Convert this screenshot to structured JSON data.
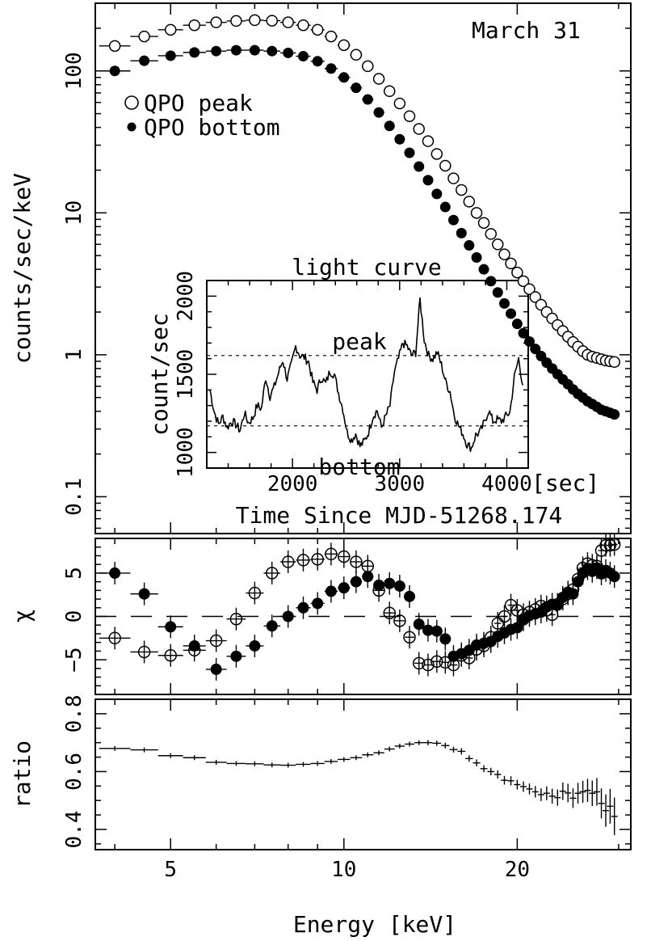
{
  "chart_data": [
    {
      "type": "scatter",
      "panel": "spectrum",
      "title": "March 31",
      "xlabel": "Energy [keV]",
      "ylabel": "counts/sec/keV",
      "xscale": "log",
      "yscale": "log",
      "xlim": [
        3.7,
        31.5
      ],
      "ylim": [
        0.055,
        300
      ],
      "xticks": [
        5,
        10,
        20
      ],
      "yticks": [
        0.1,
        1,
        10,
        100
      ],
      "ytick_labels": [
        "0.1",
        "1",
        "10",
        "100"
      ],
      "legend": [
        "QPO peak",
        "QPO bottom"
      ],
      "series": [
        {
          "name": "QPO peak",
          "marker": "open-circle",
          "x": [
            4.0,
            4.5,
            5.0,
            5.5,
            6.0,
            6.5,
            7.0,
            7.5,
            8.0,
            8.5,
            9.0,
            9.5,
            10.0,
            10.5,
            11.0,
            11.5,
            12.0,
            12.5,
            13.0,
            13.5,
            14.0,
            14.5,
            15.0,
            15.5,
            16.0,
            16.5,
            17.0,
            17.5,
            18.0,
            18.5,
            19.0,
            19.5,
            20.0,
            20.5,
            21.0,
            21.5,
            22.0,
            22.5,
            23.0,
            23.5,
            24.0,
            24.5,
            25.0,
            25.5,
            26.0,
            26.5,
            27.0,
            27.5,
            28.0,
            28.5,
            29.0,
            29.5
          ],
          "y": [
            150,
            175,
            195,
            210,
            220,
            225,
            228,
            226,
            220,
            210,
            195,
            175,
            152,
            130,
            108,
            88,
            72,
            59,
            48,
            39,
            32,
            26,
            21.5,
            17.5,
            14.5,
            12,
            10,
            8.5,
            7.1,
            6,
            5.1,
            4.4,
            3.8,
            3.3,
            2.9,
            2.55,
            2.25,
            2.0,
            1.8,
            1.62,
            1.47,
            1.34,
            1.23,
            1.14,
            1.06,
            1.0,
            0.97,
            0.95,
            0.93,
            0.91,
            0.9,
            0.89
          ]
        },
        {
          "name": "QPO bottom",
          "marker": "filled-circle",
          "x": [
            4.0,
            4.5,
            5.0,
            5.5,
            6.0,
            6.5,
            7.0,
            7.5,
            8.0,
            8.5,
            9.0,
            9.5,
            10.0,
            10.5,
            11.0,
            11.5,
            12.0,
            12.5,
            13.0,
            13.5,
            14.0,
            14.5,
            15.0,
            15.5,
            16.0,
            16.5,
            17.0,
            17.5,
            18.0,
            18.5,
            19.0,
            19.5,
            20.0,
            20.5,
            21.0,
            21.5,
            22.0,
            22.5,
            23.0,
            23.5,
            24.0,
            24.5,
            25.0,
            25.5,
            26.0,
            26.5,
            27.0,
            27.5,
            28.0,
            28.5,
            29.0,
            29.5
          ],
          "y": [
            100,
            118,
            128,
            135,
            138,
            140,
            140,
            138,
            134,
            127,
            117,
            104,
            90,
            76,
            63,
            51,
            41,
            33,
            26.5,
            21.2,
            17,
            13.6,
            11,
            8.9,
            7.2,
            5.9,
            4.85,
            4.0,
            3.3,
            2.75,
            2.3,
            1.95,
            1.65,
            1.42,
            1.24,
            1.1,
            0.98,
            0.88,
            0.8,
            0.73,
            0.67,
            0.62,
            0.57,
            0.53,
            0.5,
            0.47,
            0.45,
            0.43,
            0.41,
            0.4,
            0.39,
            0.38
          ]
        }
      ],
      "inset": {
        "type": "line",
        "title": "light curve",
        "xlabel": "Time Since MJD-51268.174",
        "x_unit": "[sec]",
        "ylabel": "count/sec",
        "xlim": [
          1200,
          4200
        ],
        "ylim": [
          900,
          2100
        ],
        "xticks": [
          2000,
          3000,
          4000
        ],
        "yticks": [
          1000,
          1500,
          2000
        ],
        "levels": [
          {
            "name": "peak",
            "y": 1620
          },
          {
            "name": "bottom",
            "y": 1170
          }
        ],
        "x": [
          1230,
          1270,
          1310,
          1350,
          1390,
          1430,
          1470,
          1510,
          1550,
          1590,
          1630,
          1670,
          1710,
          1750,
          1790,
          1830,
          1870,
          1910,
          1950,
          1990,
          2030,
          2070,
          2110,
          2150,
          2190,
          2230,
          2270,
          2310,
          2350,
          2390,
          2430,
          2470,
          2510,
          2550,
          2590,
          2630,
          2670,
          2710,
          2750,
          2790,
          2830,
          2870,
          2910,
          2950,
          2990,
          3030,
          3070,
          3110,
          3150,
          3190,
          3230,
          3270,
          3310,
          3350,
          3390,
          3430,
          3470,
          3510,
          3550,
          3590,
          3630,
          3670,
          3710,
          3750,
          3790,
          3830,
          3870,
          3910,
          3950,
          3990,
          4030,
          4070,
          4110,
          4150
        ],
        "y": [
          1400,
          1260,
          1180,
          1230,
          1160,
          1200,
          1180,
          1140,
          1250,
          1190,
          1220,
          1300,
          1280,
          1480,
          1360,
          1420,
          1510,
          1590,
          1470,
          1560,
          1680,
          1620,
          1610,
          1580,
          1450,
          1400,
          1480,
          1440,
          1520,
          1500,
          1380,
          1280,
          1130,
          1080,
          1120,
          1040,
          1070,
          1130,
          1230,
          1270,
          1160,
          1230,
          1300,
          1510,
          1600,
          1700,
          1680,
          1620,
          1640,
          1980,
          1720,
          1620,
          1600,
          1640,
          1560,
          1450,
          1390,
          1240,
          1170,
          1120,
          1050,
          1030,
          1110,
          1130,
          1190,
          1270,
          1200,
          1210,
          1200,
          1230,
          1260,
          1480,
          1600,
          1430
        ]
      }
    },
    {
      "type": "scatter",
      "panel": "residuals",
      "ylabel": "χ",
      "xscale": "log",
      "xlim": [
        3.7,
        31.5
      ],
      "ylim": [
        -9,
        9
      ],
      "yticks": [
        -5,
        0,
        5
      ],
      "ytick_labels": [
        "−5",
        "0",
        "5"
      ],
      "series": [
        {
          "name": "QPO peak",
          "marker": "open-circle",
          "x": [
            4.0,
            4.5,
            5.0,
            5.5,
            6.0,
            6.5,
            7.0,
            7.5,
            8.0,
            8.5,
            9.0,
            9.5,
            10.0,
            10.5,
            11.0,
            11.5,
            12.0,
            12.5,
            13.0,
            13.5,
            14.0,
            14.5,
            15.0,
            15.5,
            16.0,
            16.5,
            17.0,
            17.5,
            18.0,
            18.5,
            19.0,
            19.5,
            20.0,
            20.5,
            21.0,
            21.5,
            22.0,
            22.5,
            23.0,
            23.5,
            24.0,
            24.5,
            25.0,
            25.5,
            26.0,
            26.5,
            27.0,
            27.5,
            28.0,
            28.5,
            29.0,
            29.5
          ],
          "y": [
            -2.5,
            -4.1,
            -4.5,
            -3.9,
            -2.8,
            -0.3,
            2.7,
            5.0,
            6.3,
            6.5,
            6.6,
            7.2,
            6.9,
            6.3,
            5.8,
            3.0,
            0.4,
            -0.5,
            -2.4,
            -5.4,
            -5.6,
            -5.2,
            -5.3,
            -5.6,
            -4.5,
            -4.8,
            -3.8,
            -3.4,
            -2.4,
            -0.8,
            0.0,
            1.3,
            0.7,
            0.2,
            0.5,
            0.8,
            1.2,
            0.7,
            0.2,
            1.4,
            2.0,
            2.6,
            3.1,
            4.3,
            5.6,
            6.1,
            5.9,
            5.8,
            7.6,
            8.2,
            8.2,
            8.3
          ]
        },
        {
          "name": "QPO bottom",
          "marker": "filled-circle",
          "x": [
            4.0,
            4.5,
            5.0,
            5.5,
            6.0,
            6.5,
            7.0,
            7.5,
            8.0,
            8.5,
            9.0,
            9.5,
            10.0,
            10.5,
            11.0,
            11.5,
            12.0,
            12.5,
            13.0,
            13.5,
            14.0,
            14.5,
            15.0,
            15.5,
            16.0,
            16.5,
            17.0,
            17.5,
            18.0,
            18.5,
            19.0,
            19.5,
            20.0,
            20.5,
            21.0,
            21.5,
            22.0,
            22.5,
            23.0,
            23.5,
            24.0,
            24.5,
            25.0,
            25.5,
            26.0,
            26.5,
            27.0,
            27.5,
            28.0,
            28.5,
            29.0,
            29.5
          ],
          "y": [
            5.0,
            2.6,
            -1.2,
            -3.4,
            -6.1,
            -4.6,
            -3.4,
            -1.1,
            0.0,
            1.0,
            1.5,
            2.9,
            3.3,
            4.0,
            4.6,
            3.6,
            3.8,
            3.5,
            2.3,
            -0.9,
            -1.6,
            -1.7,
            -2.6,
            -4.6,
            -4.3,
            -3.9,
            -3.3,
            -3.1,
            -2.9,
            -2.3,
            -1.9,
            -1.5,
            -1.3,
            -0.4,
            0.1,
            0.3,
            0.5,
            1.1,
            1.4,
            1.3,
            2.2,
            2.8,
            2.6,
            4.0,
            5.0,
            5.5,
            5.2,
            5.6,
            4.9,
            5.3,
            5.0,
            4.6
          ]
        }
      ]
    },
    {
      "type": "scatter",
      "panel": "ratio",
      "ylabel": "ratio",
      "xlabel": "Energy [keV]",
      "xscale": "log",
      "xlim": [
        3.7,
        31.5
      ],
      "ylim": [
        0.33,
        0.85
      ],
      "yticks": [
        0.4,
        0.6,
        0.8
      ],
      "ytick_labels": [
        "0.4",
        "0.6",
        "0.8"
      ],
      "xticks": [
        5,
        10,
        20
      ],
      "xtick_labels": [
        "5",
        "10",
        "20"
      ],
      "series": [
        {
          "name": "ratio",
          "marker": "cross",
          "x": [
            4.0,
            4.5,
            5.0,
            5.5,
            6.0,
            6.5,
            7.0,
            7.5,
            8.0,
            8.5,
            9.0,
            9.5,
            10.0,
            10.5,
            11.0,
            11.5,
            12.0,
            12.5,
            13.0,
            13.5,
            14.0,
            14.5,
            15.0,
            15.5,
            16.0,
            16.5,
            17.0,
            17.5,
            18.0,
            18.5,
            19.0,
            19.5,
            20.0,
            20.5,
            21.0,
            21.5,
            22.0,
            22.5,
            23.0,
            23.5,
            24.0,
            24.5,
            25.0,
            25.5,
            26.0,
            26.5,
            27.0,
            27.5,
            28.0,
            28.5,
            29.0,
            29.5
          ],
          "y": [
            0.68,
            0.675,
            0.655,
            0.648,
            0.632,
            0.628,
            0.627,
            0.623,
            0.622,
            0.625,
            0.628,
            0.635,
            0.642,
            0.648,
            0.658,
            0.665,
            0.678,
            0.688,
            0.695,
            0.7,
            0.7,
            0.698,
            0.69,
            0.676,
            0.67,
            0.645,
            0.63,
            0.61,
            0.6,
            0.59,
            0.57,
            0.568,
            0.555,
            0.548,
            0.54,
            0.53,
            0.52,
            0.525,
            0.515,
            0.51,
            0.532,
            0.526,
            0.508,
            0.525,
            0.53,
            0.535,
            0.525,
            0.53,
            0.49,
            0.465,
            0.48,
            0.445
          ],
          "yerr": [
            0.005,
            0.005,
            0.005,
            0.005,
            0.005,
            0.005,
            0.005,
            0.005,
            0.005,
            0.005,
            0.006,
            0.006,
            0.006,
            0.006,
            0.007,
            0.007,
            0.007,
            0.008,
            0.008,
            0.008,
            0.009,
            0.009,
            0.01,
            0.01,
            0.011,
            0.011,
            0.012,
            0.012,
            0.013,
            0.014,
            0.015,
            0.016,
            0.017,
            0.018,
            0.019,
            0.02,
            0.022,
            0.024,
            0.026,
            0.028,
            0.03,
            0.032,
            0.034,
            0.036,
            0.038,
            0.04,
            0.044,
            0.048,
            0.052,
            0.056,
            0.06,
            0.065
          ]
        }
      ]
    }
  ]
}
